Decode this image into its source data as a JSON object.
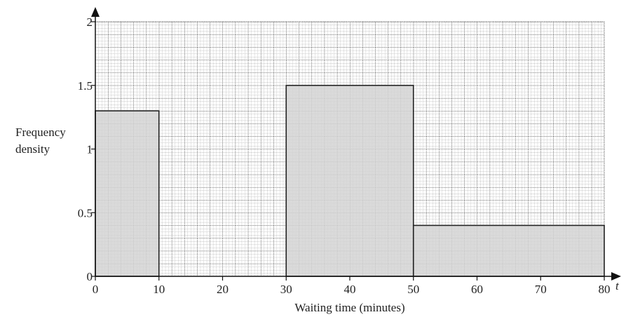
{
  "chart_data": {
    "type": "histogram",
    "x_label": "Waiting time (minutes)",
    "y_label": "Frequency density",
    "x_variable": "t",
    "bins": [
      0,
      10,
      30,
      50,
      80
    ],
    "values": [
      1.3,
      null,
      1.5,
      0.4
    ],
    "color": "#d4d4d4",
    "xlim": [
      0,
      80
    ],
    "xticks": [
      0,
      10,
      20,
      30,
      40,
      50,
      60,
      70,
      80
    ],
    "ylim": [
      0,
      2
    ],
    "yticks": [
      0,
      0.5,
      1,
      1.5,
      2
    ],
    "grid": true
  }
}
